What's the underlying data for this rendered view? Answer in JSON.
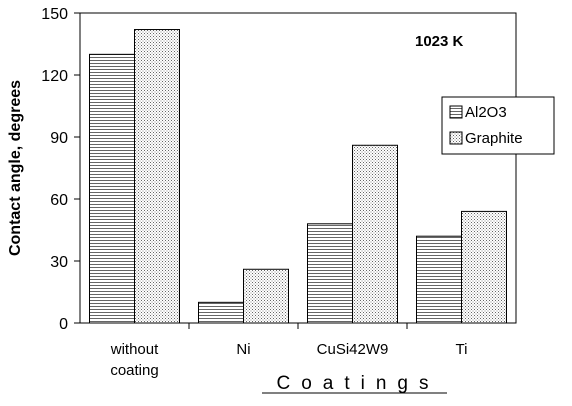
{
  "chart_data": {
    "type": "bar",
    "categories": [
      [
        "without",
        "coating"
      ],
      [
        "Ni"
      ],
      [
        "CuSi42W9"
      ],
      [
        "Ti"
      ]
    ],
    "series": [
      {
        "name": "Al2O3",
        "values": [
          130,
          10,
          48,
          42
        ],
        "pattern": "horizontal-stripes"
      },
      {
        "name": "Graphite",
        "values": [
          142,
          26,
          86,
          54
        ],
        "pattern": "dots"
      }
    ],
    "annotation": "1023 K",
    "xlabel": "Coatings",
    "ylabel": "Contact angle, degrees",
    "ylim": [
      0,
      150
    ],
    "yticks": [
      0,
      30,
      60,
      90,
      120,
      150
    ],
    "grid": false,
    "legend_position": "right",
    "colors": {
      "bar_fill": "#ffffff",
      "stroke": "#000000",
      "pattern": "#555555"
    }
  }
}
